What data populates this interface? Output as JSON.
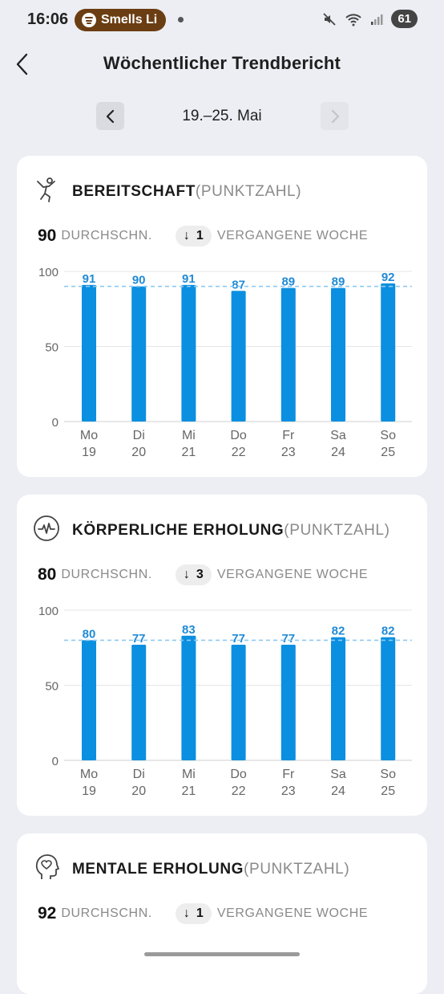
{
  "status_bar": {
    "time": "16:06",
    "media_text": "Smells Li",
    "battery": "61"
  },
  "header": {
    "title": "Wöchentlicher Trendbericht"
  },
  "date_nav": {
    "range": "19.–25. Mai"
  },
  "colors": {
    "bar": "#0b8fe0",
    "label": "#1f8ad6",
    "avg_line": "#8fcaf2",
    "grid": "#e6e6e6"
  },
  "cards": [
    {
      "title": "BEREITSCHAFT",
      "unit": "(PUNKTZAHL)",
      "icon": "person-jump-icon",
      "avg_value": "90",
      "avg_label": "DURCHSCHN.",
      "diff_arrow": "↓",
      "diff_value": "1",
      "prev_label": "VERGANGENE WOCHE"
    },
    {
      "title": "KÖRPERLICHE ERHOLUNG",
      "unit": "(PUNKTZAHL)",
      "icon": "heart-rate-icon",
      "avg_value": "80",
      "avg_label": "DURCHSCHN.",
      "diff_arrow": "↓",
      "diff_value": "3",
      "prev_label": "VERGANGENE WOCHE"
    },
    {
      "title": "MENTALE ERHOLUNG",
      "unit": "(PUNKTZAHL)",
      "icon": "head-heart-icon",
      "avg_value": "92",
      "avg_label": "DURCHSCHN.",
      "diff_arrow": "↓",
      "diff_value": "1",
      "prev_label": "VERGANGENE WOCHE"
    }
  ],
  "chart_data": [
    {
      "type": "bar",
      "categories": [
        "Mo 19",
        "Di 20",
        "Mi 21",
        "Do 22",
        "Fr 23",
        "Sa 24",
        "So 25"
      ],
      "weekdays": [
        "Mo",
        "Di",
        "Mi",
        "Do",
        "Fr",
        "Sa",
        "So"
      ],
      "days": [
        "19",
        "20",
        "21",
        "22",
        "23",
        "24",
        "25"
      ],
      "values": [
        91,
        90,
        91,
        87,
        89,
        89,
        92
      ],
      "average": 90,
      "ylim": [
        0,
        100
      ],
      "yticks": [
        0,
        50,
        100
      ],
      "grid": true
    },
    {
      "type": "bar",
      "categories": [
        "Mo 19",
        "Di 20",
        "Mi 21",
        "Do 22",
        "Fr 23",
        "Sa 24",
        "So 25"
      ],
      "weekdays": [
        "Mo",
        "Di",
        "Mi",
        "Do",
        "Fr",
        "Sa",
        "So"
      ],
      "days": [
        "19",
        "20",
        "21",
        "22",
        "23",
        "24",
        "25"
      ],
      "values": [
        80,
        77,
        83,
        77,
        77,
        82,
        82
      ],
      "average": 80,
      "ylim": [
        0,
        100
      ],
      "yticks": [
        0,
        50,
        100
      ],
      "grid": true
    }
  ]
}
